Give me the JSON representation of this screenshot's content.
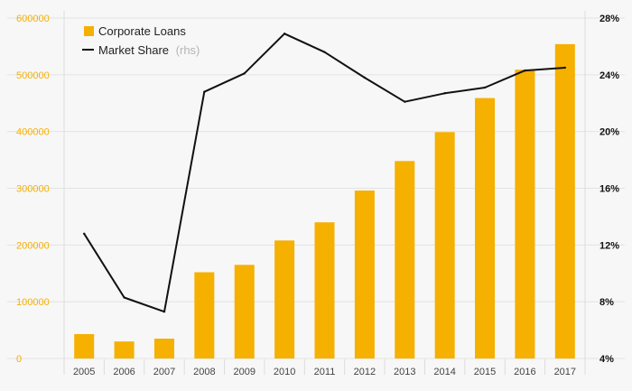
{
  "chart_data": {
    "type": "bar+line",
    "categories": [
      "2005",
      "2006",
      "2007",
      "2008",
      "2009",
      "2010",
      "2011",
      "2012",
      "2013",
      "2014",
      "2015",
      "2016",
      "2017"
    ],
    "series": [
      {
        "name": "Corporate Loans",
        "type": "bar",
        "axis": "left",
        "color": "#f5b000",
        "values": [
          43000,
          30000,
          35000,
          152000,
          165000,
          208000,
          240000,
          296000,
          348000,
          399000,
          459000,
          509000,
          554000
        ]
      },
      {
        "name": "Market Share",
        "type": "line",
        "axis": "right",
        "color": "#111111",
        "values": [
          12.8,
          8.3,
          7.3,
          22.8,
          24.1,
          26.9,
          25.6,
          23.8,
          22.1,
          22.7,
          23.1,
          24.3,
          24.5
        ]
      }
    ],
    "left_axis": {
      "min": 0,
      "max": 600000,
      "ticks": [
        "0",
        "100000",
        "200000",
        "300000",
        "400000",
        "500000",
        "600000"
      ],
      "color": "#f5b000"
    },
    "right_axis": {
      "min": 4,
      "max": 28,
      "ticks": [
        "4%",
        "8%",
        "12%",
        "16%",
        "20%",
        "24%",
        "28%"
      ],
      "color": "#111111"
    },
    "legend": {
      "position": "top-left",
      "bar_label": "Corporate Loans",
      "line_label": "Market Share",
      "line_suffix": "(rhs)"
    },
    "grid": true
  }
}
